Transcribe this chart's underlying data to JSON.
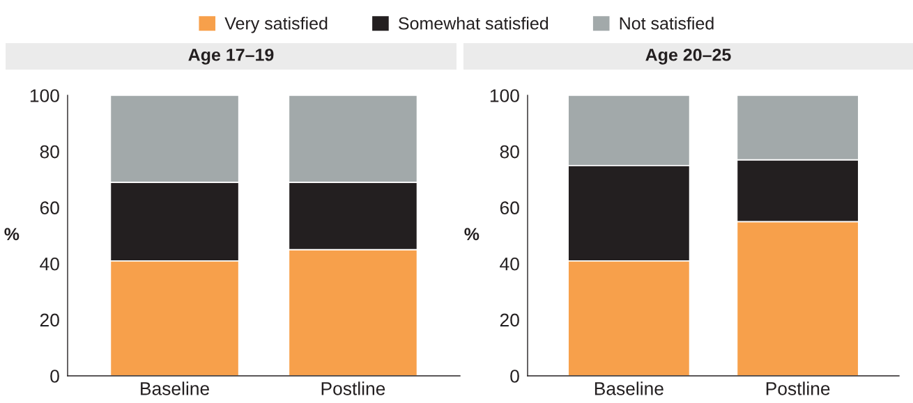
{
  "chart_data": [
    {
      "type": "bar",
      "title": "Age 17–19",
      "ylabel": "%",
      "categories": [
        "Baseline",
        "Postline"
      ],
      "stacked": true,
      "ylim": [
        0,
        100
      ],
      "yticks": [
        0,
        20,
        40,
        60,
        80,
        100
      ],
      "grid": false,
      "legend": "top",
      "series": [
        {
          "name": "Very satisfied",
          "color": "#f7a04b",
          "values": [
            41,
            45
          ]
        },
        {
          "name": "Somewhat satisfied",
          "color": "#231f20",
          "values": [
            28,
            24
          ]
        },
        {
          "name": "Not satisfied",
          "color": "#a2a9aa",
          "values": [
            31,
            31
          ]
        }
      ]
    },
    {
      "type": "bar",
      "title": "Age 20–25",
      "ylabel": "%",
      "categories": [
        "Baseline",
        "Postline"
      ],
      "stacked": true,
      "ylim": [
        0,
        100
      ],
      "yticks": [
        0,
        20,
        40,
        60,
        80,
        100
      ],
      "grid": false,
      "series": [
        {
          "color": "#f7a04b",
          "values": [
            41,
            55
          ]
        },
        {
          "color": "#231f20",
          "values": [
            34,
            22
          ]
        },
        {
          "color": "#a2a9aa",
          "values": [
            25,
            23
          ]
        }
      ]
    }
  ]
}
